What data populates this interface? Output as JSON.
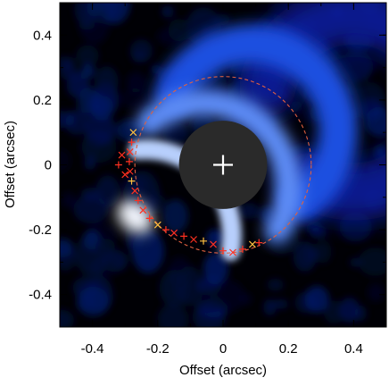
{
  "chart_data": {
    "type": "image",
    "xlabel": "Offset  (arcsec)",
    "ylabel": "Offset  (arcsec)",
    "xlim": [
      -0.5,
      0.5
    ],
    "ylim": [
      -0.5,
      0.5
    ],
    "x_ticks": [
      -0.4,
      -0.2,
      0,
      0.2,
      0.4
    ],
    "y_ticks": [
      -0.4,
      -0.2,
      0,
      0.2,
      0.4
    ],
    "x_tick_labels": [
      "-0.4",
      "-0.2",
      "0",
      "0.2",
      "0.4"
    ],
    "y_tick_labels": [
      "-0.4",
      "-0.2",
      "0",
      "0.2",
      "0.4"
    ],
    "colormap": "black-blue-white",
    "mask": {
      "center": [
        0,
        0
      ],
      "radius": 0.135,
      "color": "#2a2a2a"
    },
    "star_marker": {
      "x": 0,
      "y": 0,
      "symbol": "+",
      "color": "#ffffff"
    },
    "fit_ellipse": {
      "center": [
        0,
        0
      ],
      "radius": 0.27,
      "style": "dashed",
      "color": "#e06040"
    },
    "arc_peaks": {
      "points": [
        [
          -0.275,
          0.1
        ],
        [
          -0.28,
          0.07
        ],
        [
          -0.285,
          0.04
        ],
        [
          -0.287,
          0.01
        ],
        [
          -0.285,
          -0.02
        ],
        [
          -0.28,
          -0.05
        ],
        [
          -0.27,
          -0.08
        ],
        [
          -0.26,
          -0.11
        ],
        [
          -0.245,
          -0.14
        ],
        [
          -0.225,
          -0.165
        ],
        [
          -0.2,
          -0.185
        ],
        [
          -0.175,
          -0.2
        ],
        [
          -0.15,
          -0.21
        ],
        [
          -0.12,
          -0.22
        ],
        [
          -0.09,
          -0.23
        ],
        [
          -0.06,
          -0.235
        ],
        [
          -0.03,
          -0.245
        ],
        [
          0.0,
          -0.265
        ],
        [
          0.03,
          -0.27
        ],
        [
          0.06,
          -0.26
        ],
        [
          0.09,
          -0.245
        ],
        [
          0.11,
          -0.24
        ],
        [
          -0.31,
          0.03
        ],
        [
          -0.32,
          0.0
        ],
        [
          -0.3,
          -0.03
        ]
      ],
      "marker_colors": [
        "#ff3020",
        "#ffc040"
      ]
    },
    "emission": {
      "arc_center": [
        0,
        0
      ],
      "arc_radius": 0.27,
      "brightest_point": [
        -0.27,
        -0.16
      ],
      "peak_color": "#f4f8ff"
    },
    "grid": false,
    "legend": "none"
  }
}
